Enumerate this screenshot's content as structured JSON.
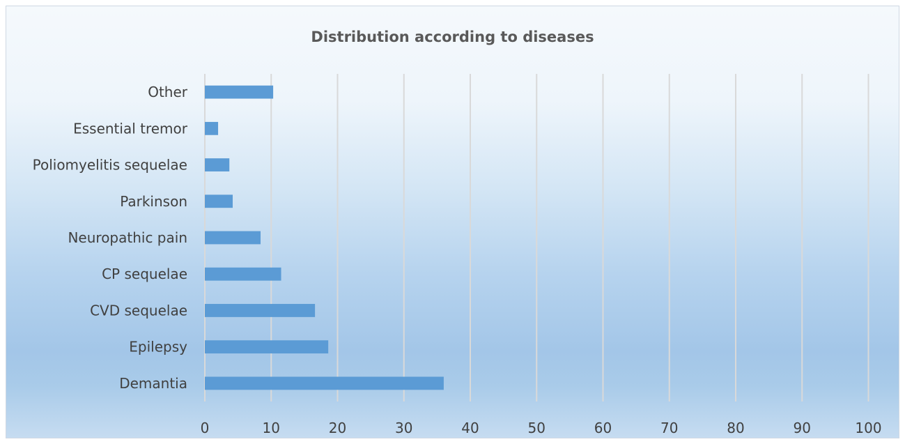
{
  "chart_data": {
    "type": "bar",
    "orientation": "horizontal",
    "title": "Distribution according to diseases",
    "categories": [
      "Other",
      "Essential tremor",
      "Poliomyelitis sequelae",
      "Parkinson",
      "Neuropathic pain",
      "CP sequelae",
      "CVD sequelae",
      "Epilepsy",
      "Demantia"
    ],
    "values": [
      10.3,
      2,
      3.7,
      4.2,
      8.4,
      11.5,
      16.6,
      18.6,
      36
    ],
    "xlim": [
      0,
      100
    ],
    "xticks": [
      0,
      10,
      20,
      30,
      40,
      50,
      60,
      70,
      80,
      90,
      100
    ],
    "grid": "vertical",
    "legend": "none",
    "bar_color": "#5b9bd5",
    "grid_color": "#d9d9d9"
  }
}
